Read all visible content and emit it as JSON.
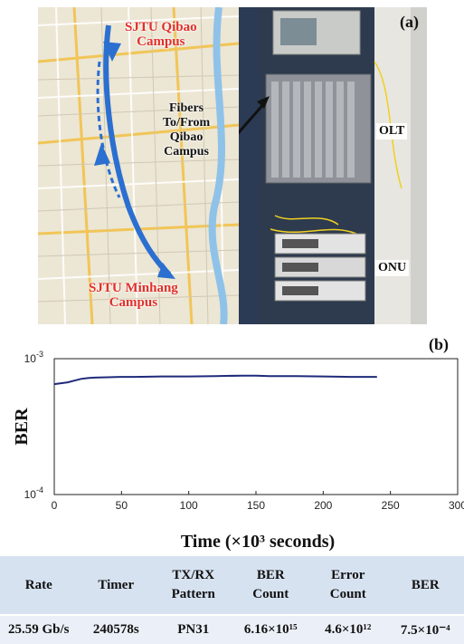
{
  "panel_a": {
    "tag": "(a)",
    "map_labels": {
      "qibao_line1": "SJTU Qibao",
      "qibao_line2": "Campus",
      "minhang_line1": "SJTU Minhang",
      "minhang_line2": "Campus",
      "fibers_line1": "Fibers",
      "fibers_line2": "To/From",
      "fibers_line3": "Qibao",
      "fibers_line4": "Campus"
    },
    "rack_labels": {
      "olt": "OLT",
      "onu": "ONU"
    }
  },
  "panel_b": {
    "tag": "(b)"
  },
  "chart_data": {
    "type": "line",
    "xlabel": "Time (×10³ seconds)",
    "ylabel": "BER",
    "xlim": [
      0,
      300
    ],
    "x_ticks": [
      "0",
      "50",
      "100",
      "150",
      "200",
      "250",
      "300"
    ],
    "y_ticks": [
      "10^-3",
      "10^-4"
    ],
    "y_scale": "log",
    "ylim": [
      0.0001,
      0.001
    ],
    "series": [
      {
        "color": "#1f2a7a",
        "x": [
          0,
          5,
          10,
          15,
          20,
          25,
          30,
          40,
          50,
          60,
          80,
          100,
          120,
          140,
          150,
          160,
          180,
          200,
          220,
          240
        ],
        "y": [
          0.00065,
          0.00066,
          0.00067,
          0.00069,
          0.00071,
          0.00072,
          0.000725,
          0.00073,
          0.000735,
          0.000735,
          0.00074,
          0.00074,
          0.000745,
          0.00075,
          0.00075,
          0.000745,
          0.000745,
          0.00074,
          0.000735,
          0.000735
        ]
      }
    ]
  },
  "table": {
    "headers": [
      [
        "Rate"
      ],
      [
        "Timer"
      ],
      [
        "TX/RX",
        "Pattern"
      ],
      [
        "BER",
        "Count"
      ],
      [
        "Error",
        "Count"
      ],
      [
        "BER"
      ]
    ],
    "values": [
      "25.59 Gb/s",
      "240578s",
      "PN31",
      "6.16×10¹⁵",
      "4.6×10¹²",
      "7.5×10⁻⁴"
    ]
  }
}
